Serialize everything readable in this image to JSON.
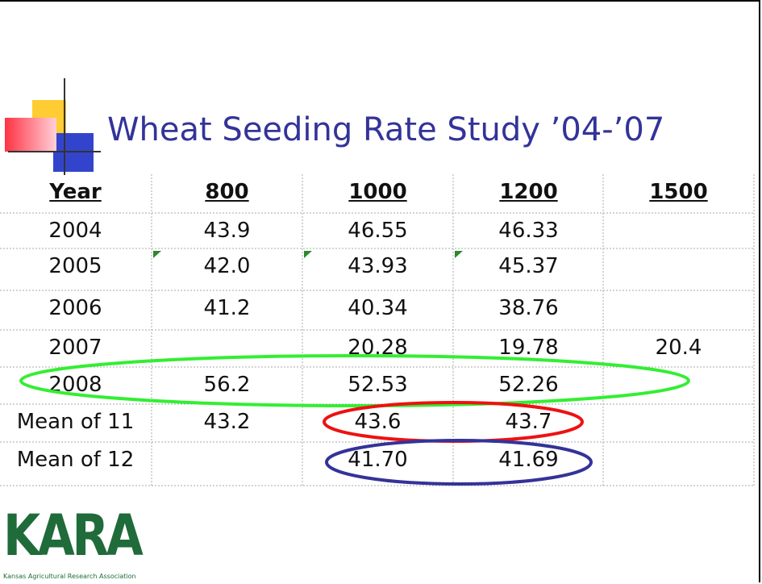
{
  "title": "Wheat Seeding Rate Study ’04-’07",
  "table": {
    "header": [
      "Year",
      "800",
      "1000",
      "1200",
      "1500"
    ],
    "rows": [
      [
        "2004",
        "43.9",
        "46.55",
        "46.33",
        null
      ],
      [
        "2005",
        "42.0",
        "43.93",
        "45.37",
        null
      ],
      [
        "2006",
        "41.2",
        "40.34",
        "38.76",
        null
      ],
      [
        "2007",
        null,
        "20.28",
        "19.78",
        "20.4"
      ],
      [
        "2008",
        "56.2",
        "52.53",
        "52.26",
        null
      ],
      [
        "Mean of 11",
        "43.2",
        "43.6",
        "43.7",
        null
      ],
      [
        "Mean of 12",
        null,
        "41.70",
        "41.69",
        null
      ]
    ]
  },
  "logo": {
    "text": "KARA",
    "caption": "Kansas Agricultural Research Association"
  }
}
